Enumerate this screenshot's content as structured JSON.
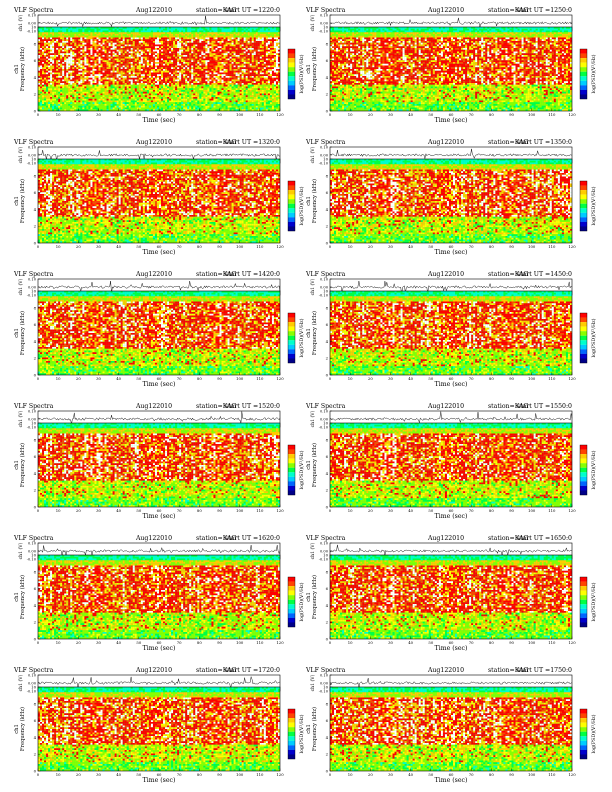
{
  "colors": {
    "background": "#ffffff",
    "axis": "#000000",
    "trace": "#000000",
    "colormap": [
      "#ffffff",
      "#ff0000",
      "#ff4400",
      "#ffcc00",
      "#ffff00",
      "#88ff00",
      "#00ff44",
      "#00ffcc",
      "#00ccff",
      "#0066ff",
      "#0000cc",
      "#000088"
    ]
  },
  "chart_data": [
    {
      "type": "heatmap",
      "title": "VLF Spectra",
      "date_label": "Aug122010",
      "station_label": "station=KAG",
      "start_label": "start UT =1220:0",
      "waveform": {
        "ylabel": "ch1 (V)",
        "ticks": [
          "0.10",
          "0.00",
          "-0.10"
        ],
        "ylim": [
          -0.1,
          0.1
        ]
      },
      "spectrogram": {
        "ylabel": "Frequency (kHz)",
        "ch_label": "ch1",
        "yticks": [
          0,
          2,
          4,
          6,
          8,
          10
        ],
        "ylim": [
          0,
          10
        ]
      },
      "xlabel": "Time (sec)",
      "xticks": [
        0,
        10,
        20,
        30,
        40,
        50,
        60,
        70,
        80,
        90,
        100,
        110,
        120
      ],
      "xlim": [
        0,
        120
      ],
      "colorbar": {
        "label": "log(PSD)(V²/Hz)"
      }
    },
    {
      "type": "heatmap",
      "title": "VLF Spectra",
      "date_label": "Aug122010",
      "station_label": "station=KAG",
      "start_label": "start UT =1250:0",
      "waveform": {
        "ylabel": "ch1 (V)",
        "ticks": [
          "0.10",
          "0.00",
          "-0.10"
        ],
        "ylim": [
          -0.1,
          0.1
        ]
      },
      "spectrogram": {
        "ylabel": "Frequency (kHz)",
        "ch_label": "ch1",
        "yticks": [
          0,
          2,
          4,
          6,
          8,
          10
        ],
        "ylim": [
          0,
          10
        ]
      },
      "xlabel": "Time (sec)",
      "xticks": [
        0,
        10,
        20,
        30,
        40,
        50,
        60,
        70,
        80,
        90,
        100,
        110,
        120
      ],
      "xlim": [
        0,
        120
      ],
      "colorbar": {
        "label": "log(PSD)(V²/Hz)"
      }
    },
    {
      "type": "heatmap",
      "title": "VLF Spectra",
      "date_label": "Aug122010",
      "station_label": "station=KAG",
      "start_label": "start UT =1320:0",
      "waveform": {
        "ylabel": "ch1 (V)",
        "ticks": [
          "0.10",
          "0.00",
          "-0.10"
        ],
        "ylim": [
          -0.1,
          0.1
        ]
      },
      "spectrogram": {
        "ylabel": "Frequency (kHz)",
        "ch_label": "ch1",
        "yticks": [
          0,
          2,
          4,
          6,
          8,
          10
        ],
        "ylim": [
          0,
          10
        ]
      },
      "xlabel": "Time (sec)",
      "xticks": [
        0,
        10,
        20,
        30,
        40,
        50,
        60,
        70,
        80,
        90,
        100,
        110,
        120
      ],
      "xlim": [
        0,
        120
      ],
      "colorbar": {
        "label": "log(PSD)(V²/Hz)"
      }
    },
    {
      "type": "heatmap",
      "title": "VLF Spectra",
      "date_label": "Aug122010",
      "station_label": "station=KAG",
      "start_label": "start UT =1350:0",
      "waveform": {
        "ylabel": "ch1 (V)",
        "ticks": [
          "0.10",
          "0.00",
          "-0.10"
        ],
        "ylim": [
          -0.1,
          0.1
        ]
      },
      "spectrogram": {
        "ylabel": "Frequency (kHz)",
        "ch_label": "ch1",
        "yticks": [
          0,
          2,
          4,
          6,
          8,
          10
        ],
        "ylim": [
          0,
          10
        ]
      },
      "xlabel": "Time (sec)",
      "xticks": [
        0,
        10,
        20,
        30,
        40,
        50,
        60,
        70,
        80,
        90,
        100,
        110,
        120
      ],
      "xlim": [
        0,
        120
      ],
      "colorbar": {
        "label": "log(PSD)(V²/Hz)"
      }
    },
    {
      "type": "heatmap",
      "title": "VLF Spectra",
      "date_label": "Aug122010",
      "station_label": "station=KAG",
      "start_label": "start UT =1420:0",
      "waveform": {
        "ylabel": "ch1 (V)",
        "ticks": [
          "0.10",
          "0.00",
          "-0.10"
        ],
        "ylim": [
          -0.1,
          0.1
        ]
      },
      "spectrogram": {
        "ylabel": "Frequency (kHz)",
        "ch_label": "ch1",
        "yticks": [
          0,
          2,
          4,
          6,
          8,
          10
        ],
        "ylim": [
          0,
          10
        ]
      },
      "xlabel": "Time (sec)",
      "xticks": [
        0,
        10,
        20,
        30,
        40,
        50,
        60,
        70,
        80,
        90,
        100,
        110,
        120
      ],
      "xlim": [
        0,
        120
      ],
      "colorbar": {
        "label": "log(PSD)(V²/Hz)"
      }
    },
    {
      "type": "heatmap",
      "title": "VLF Spectra",
      "date_label": "Aug122010",
      "station_label": "station=KAG",
      "start_label": "start UT =1450:0",
      "waveform": {
        "ylabel": "ch1 (V)",
        "ticks": [
          "0.10",
          "0.00",
          "-0.10"
        ],
        "ylim": [
          -0.1,
          0.1
        ]
      },
      "spectrogram": {
        "ylabel": "Frequency (kHz)",
        "ch_label": "ch1",
        "yticks": [
          0,
          2,
          4,
          6,
          8,
          10
        ],
        "ylim": [
          0,
          10
        ]
      },
      "xlabel": "Time (sec)",
      "xticks": [
        0,
        10,
        20,
        30,
        40,
        50,
        60,
        70,
        80,
        90,
        100,
        110,
        120
      ],
      "xlim": [
        0,
        120
      ],
      "colorbar": {
        "label": "log(PSD)(V²/Hz)"
      }
    },
    {
      "type": "heatmap",
      "title": "VLF Spectra",
      "date_label": "Aug122010",
      "station_label": "station=KAG",
      "start_label": "start UT =1520:0",
      "waveform": {
        "ylabel": "ch1 (V)",
        "ticks": [
          "0.10",
          "0.00",
          "-0.10"
        ],
        "ylim": [
          -0.1,
          0.1
        ]
      },
      "spectrogram": {
        "ylabel": "Frequency (kHz)",
        "ch_label": "ch1",
        "yticks": [
          0,
          2,
          4,
          6,
          8,
          10
        ],
        "ylim": [
          0,
          10
        ]
      },
      "xlabel": "Time (sec)",
      "xticks": [
        0,
        10,
        20,
        30,
        40,
        50,
        60,
        70,
        80,
        90,
        100,
        110,
        120
      ],
      "xlim": [
        0,
        120
      ],
      "colorbar": {
        "label": "log(PSD)(V²/Hz)"
      }
    },
    {
      "type": "heatmap",
      "title": "VLF Spectra",
      "date_label": "Aug122010",
      "station_label": "station=KAG",
      "start_label": "start UT =1550:0",
      "waveform": {
        "ylabel": "ch1 (V)",
        "ticks": [
          "0.10",
          "0.00",
          "-0.10"
        ],
        "ylim": [
          -0.1,
          0.1
        ]
      },
      "spectrogram": {
        "ylabel": "Frequency (kHz)",
        "ch_label": "ch1",
        "yticks": [
          0,
          2,
          4,
          6,
          8,
          10
        ],
        "ylim": [
          0,
          10
        ]
      },
      "xlabel": "Time (sec)",
      "xticks": [
        0,
        10,
        20,
        30,
        40,
        50,
        60,
        70,
        80,
        90,
        100,
        110,
        120
      ],
      "xlim": [
        0,
        120
      ],
      "colorbar": {
        "label": "log(PSD)(V²/Hz)"
      }
    },
    {
      "type": "heatmap",
      "title": "VLF Spectra",
      "date_label": "Aug122010",
      "station_label": "station=KAG",
      "start_label": "start UT =1620:0",
      "waveform": {
        "ylabel": "ch1 (V)",
        "ticks": [
          "0.10",
          "0.00",
          "-0.10"
        ],
        "ylim": [
          -0.1,
          0.1
        ]
      },
      "spectrogram": {
        "ylabel": "Frequency (kHz)",
        "ch_label": "ch1",
        "yticks": [
          0,
          2,
          4,
          6,
          8,
          10
        ],
        "ylim": [
          0,
          10
        ]
      },
      "xlabel": "Time (sec)",
      "xticks": [
        0,
        10,
        20,
        30,
        40,
        50,
        60,
        70,
        80,
        90,
        100,
        110,
        120
      ],
      "xlim": [
        0,
        120
      ],
      "colorbar": {
        "label": "log(PSD)(V²/Hz)"
      }
    },
    {
      "type": "heatmap",
      "title": "VLF Spectra",
      "date_label": "Aug122010",
      "station_label": "station=KAG",
      "start_label": "start UT =1650:0",
      "waveform": {
        "ylabel": "ch1 (V)",
        "ticks": [
          "0.10",
          "0.00",
          "-0.10"
        ],
        "ylim": [
          -0.1,
          0.1
        ]
      },
      "spectrogram": {
        "ylabel": "Frequency (kHz)",
        "ch_label": "ch1",
        "yticks": [
          0,
          2,
          4,
          6,
          8,
          10
        ],
        "ylim": [
          0,
          10
        ]
      },
      "xlabel": "Time (sec)",
      "xticks": [
        0,
        10,
        20,
        30,
        40,
        50,
        60,
        70,
        80,
        90,
        100,
        110,
        120
      ],
      "xlim": [
        0,
        120
      ],
      "colorbar": {
        "label": "log(PSD)(V²/Hz)"
      }
    },
    {
      "type": "heatmap",
      "title": "VLF Spectra",
      "date_label": "Aug122010",
      "station_label": "station=KAG",
      "start_label": "start UT =1720:0",
      "waveform": {
        "ylabel": "ch1 (V)",
        "ticks": [
          "0.10",
          "0.00",
          "-0.10"
        ],
        "ylim": [
          -0.1,
          0.1
        ]
      },
      "spectrogram": {
        "ylabel": "Frequency (kHz)",
        "ch_label": "ch1",
        "yticks": [
          0,
          2,
          4,
          6,
          8,
          10
        ],
        "ylim": [
          0,
          10
        ]
      },
      "xlabel": "Time (sec)",
      "xticks": [
        0,
        10,
        20,
        30,
        40,
        50,
        60,
        70,
        80,
        90,
        100,
        110,
        120
      ],
      "xlim": [
        0,
        120
      ],
      "colorbar": {
        "label": "log(PSD)(V²/Hz)"
      }
    },
    {
      "type": "heatmap",
      "title": "VLF Spectra",
      "date_label": "Aug122010",
      "station_label": "station=KAG",
      "start_label": "start UT =1750:0",
      "waveform": {
        "ylabel": "ch1 (V)",
        "ticks": [
          "0.10",
          "0.00",
          "-0.10"
        ],
        "ylim": [
          -0.1,
          0.1
        ]
      },
      "spectrogram": {
        "ylabel": "Frequency (kHz)",
        "ch_label": "ch1",
        "yticks": [
          0,
          2,
          4,
          6,
          8,
          10
        ],
        "ylim": [
          0,
          10
        ]
      },
      "xlabel": "Time (sec)",
      "xticks": [
        0,
        10,
        20,
        30,
        40,
        50,
        60,
        70,
        80,
        90,
        100,
        110,
        120
      ],
      "xlim": [
        0,
        120
      ],
      "colorbar": {
        "label": "log(PSD)(V²/Hz)"
      }
    }
  ]
}
